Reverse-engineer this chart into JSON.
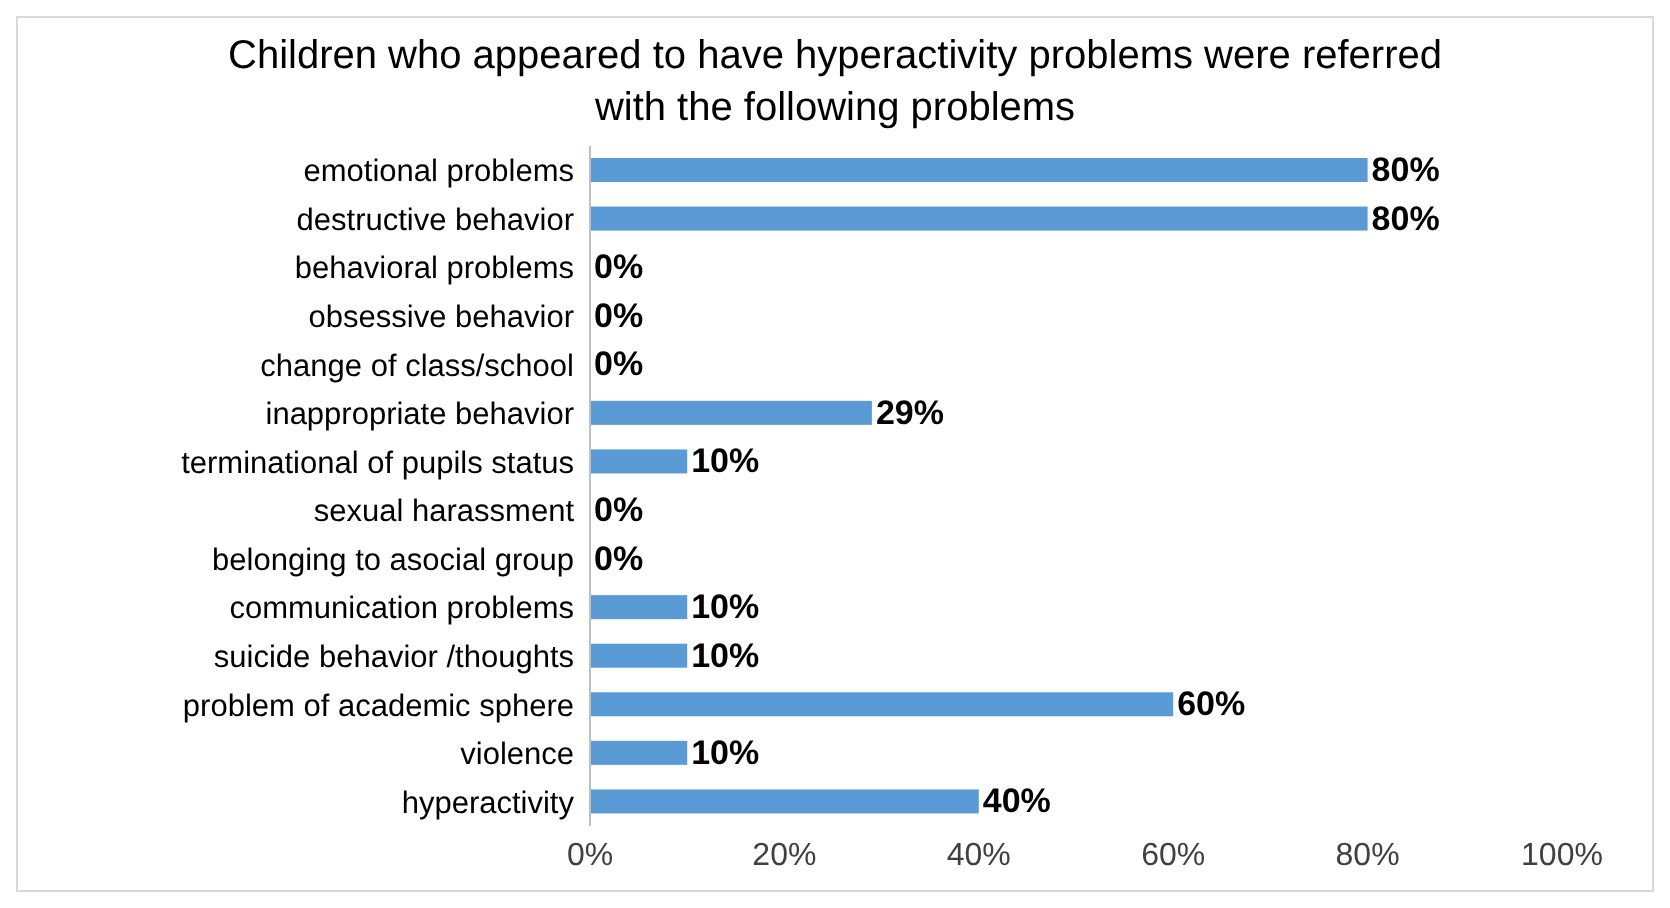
{
  "chart_data": {
    "type": "bar",
    "orientation": "horizontal",
    "title": "Children who appeared to have hyperactivity problems were referred with the following problems",
    "categories": [
      "emotional problems",
      "destructive behavior",
      "behavioral problems",
      "obsessive behavior",
      "change of class/school",
      "inappropriate behavior",
      "terminational of pupils status",
      "sexual harassment",
      "belonging to asocial group",
      "communication problems",
      "suicide behavior /thoughts",
      "problem of academic sphere",
      "violence",
      "hyperactivity"
    ],
    "values": [
      80,
      80,
      0,
      0,
      0,
      29,
      10,
      0,
      0,
      10,
      10,
      60,
      10,
      40
    ],
    "value_labels": [
      "80%",
      "80%",
      "0%",
      "0%",
      "0%",
      "29%",
      "10%",
      "0%",
      "0%",
      "10%",
      "10%",
      "60%",
      "10%",
      "40%"
    ],
    "color": "#5b9bd5",
    "xlim": [
      0,
      100
    ],
    "xticks": [
      {
        "value": 0,
        "label": "0%"
      },
      {
        "value": 20,
        "label": "20%"
      },
      {
        "value": 40,
        "label": "40%"
      },
      {
        "value": 60,
        "label": "60%"
      },
      {
        "value": 80,
        "label": "80%"
      },
      {
        "value": 100,
        "label": "100%"
      }
    ],
    "grid": false,
    "legend": false
  }
}
